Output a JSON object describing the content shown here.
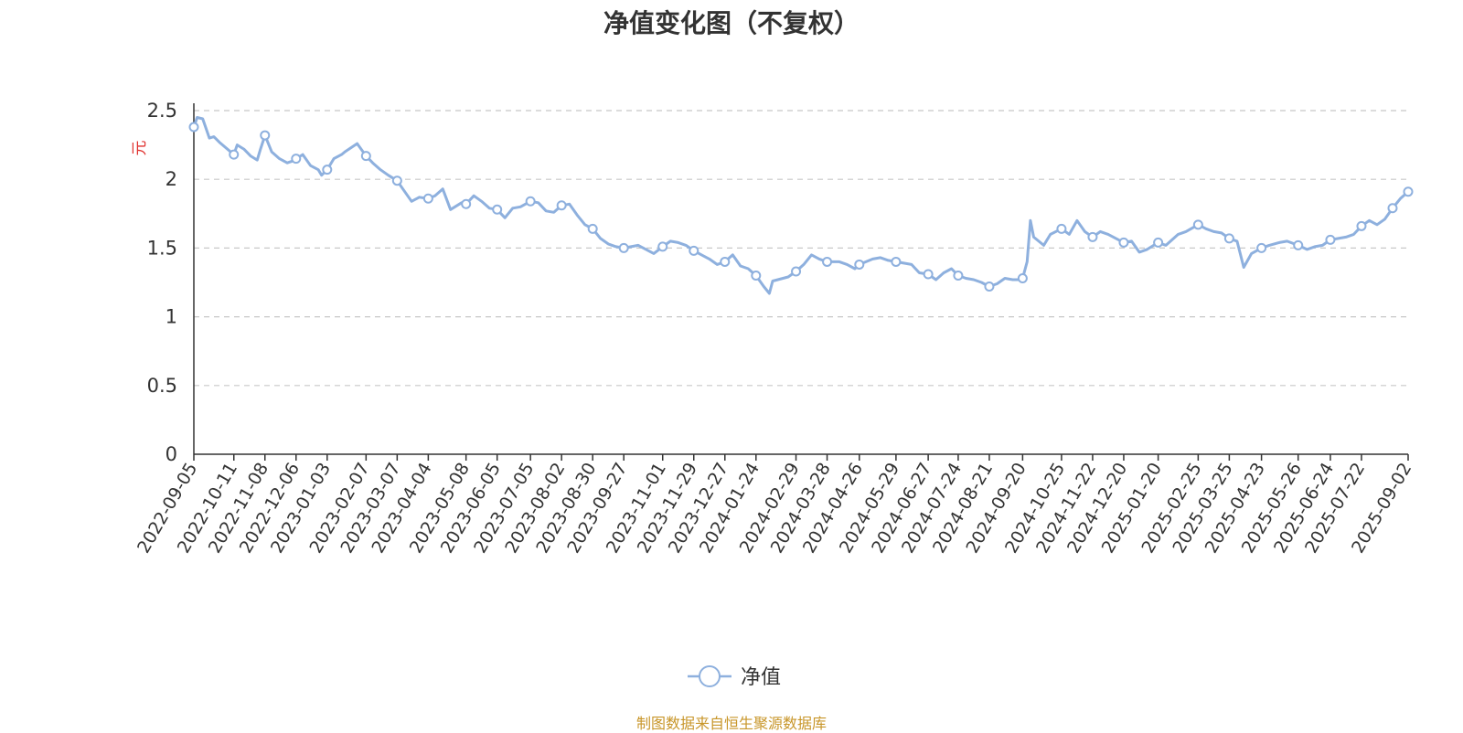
{
  "chart_data": {
    "type": "line",
    "title": "净值变化图（不复权）",
    "ylabel": "元",
    "ylim": [
      0,
      2.5
    ],
    "yticks": [
      0,
      0.5,
      1,
      1.5,
      2,
      2.5
    ],
    "grid": true,
    "legend_position": "bottom-center",
    "colors": {
      "line": "#8eb0de",
      "axis": "#333333",
      "ylabel": "#e0322f",
      "source": "#c8962a"
    },
    "x_labels": [
      "2022-09-05",
      "2022-10-11",
      "2022-11-08",
      "2022-12-06",
      "2023-01-03",
      "2023-02-07",
      "2023-03-07",
      "2023-04-04",
      "2023-05-08",
      "2023-06-05",
      "2023-07-05",
      "2023-08-02",
      "2023-08-30",
      "2023-09-27",
      "2023-11-01",
      "2023-11-29",
      "2023-12-27",
      "2024-01-24",
      "2024-02-29",
      "2024-03-28",
      "2024-04-26",
      "2024-05-29",
      "2024-06-27",
      "2024-07-24",
      "2024-08-21",
      "2024-09-20",
      "2024-10-25",
      "2024-11-22",
      "2024-12-20",
      "2025-01-20",
      "2025-02-25",
      "2025-03-25",
      "2025-04-23",
      "2025-05-26",
      "2025-06-24",
      "2025-07-22",
      "2025-09-02"
    ],
    "series": [
      {
        "name": "净值",
        "points": [
          [
            "2022-09-05",
            2.38
          ],
          [
            "2022-09-08",
            2.45
          ],
          [
            "2022-09-13",
            2.44
          ],
          [
            "2022-09-19",
            2.3
          ],
          [
            "2022-09-23",
            2.31
          ],
          [
            "2022-09-28",
            2.27
          ],
          [
            "2022-10-11",
            2.18
          ],
          [
            "2022-10-14",
            2.25
          ],
          [
            "2022-10-20",
            2.22
          ],
          [
            "2022-10-26",
            2.17
          ],
          [
            "2022-11-01",
            2.14
          ],
          [
            "2022-11-04",
            2.22
          ],
          [
            "2022-11-08",
            2.32
          ],
          [
            "2022-11-14",
            2.2
          ],
          [
            "2022-11-21",
            2.15
          ],
          [
            "2022-11-28",
            2.12
          ],
          [
            "2022-12-02",
            2.13
          ],
          [
            "2022-12-06",
            2.15
          ],
          [
            "2022-12-12",
            2.18
          ],
          [
            "2022-12-19",
            2.1
          ],
          [
            "2022-12-26",
            2.07
          ],
          [
            "2022-12-29",
            2.03
          ],
          [
            "2023-01-03",
            2.07
          ],
          [
            "2023-01-09",
            2.15
          ],
          [
            "2023-01-16",
            2.18
          ],
          [
            "2023-01-19",
            2.2
          ],
          [
            "2023-01-30",
            2.26
          ],
          [
            "2023-02-07",
            2.17
          ],
          [
            "2023-02-13",
            2.12
          ],
          [
            "2023-02-20",
            2.07
          ],
          [
            "2023-02-27",
            2.03
          ],
          [
            "2023-03-07",
            1.99
          ],
          [
            "2023-03-13",
            1.92
          ],
          [
            "2023-03-20",
            1.84
          ],
          [
            "2023-03-27",
            1.87
          ],
          [
            "2023-04-04",
            1.86
          ],
          [
            "2023-04-10",
            1.88
          ],
          [
            "2023-04-17",
            1.93
          ],
          [
            "2023-04-24",
            1.78
          ],
          [
            "2023-05-04",
            1.83
          ],
          [
            "2023-05-08",
            1.82
          ],
          [
            "2023-05-15",
            1.88
          ],
          [
            "2023-05-22",
            1.84
          ],
          [
            "2023-05-29",
            1.79
          ],
          [
            "2023-06-05",
            1.78
          ],
          [
            "2023-06-12",
            1.72
          ],
          [
            "2023-06-19",
            1.79
          ],
          [
            "2023-06-26",
            1.8
          ],
          [
            "2023-07-05",
            1.84
          ],
          [
            "2023-07-12",
            1.83
          ],
          [
            "2023-07-19",
            1.77
          ],
          [
            "2023-07-26",
            1.76
          ],
          [
            "2023-08-02",
            1.81
          ],
          [
            "2023-08-09",
            1.82
          ],
          [
            "2023-08-16",
            1.74
          ],
          [
            "2023-08-23",
            1.67
          ],
          [
            "2023-08-30",
            1.64
          ],
          [
            "2023-09-06",
            1.57
          ],
          [
            "2023-09-13",
            1.53
          ],
          [
            "2023-09-20",
            1.51
          ],
          [
            "2023-09-27",
            1.5
          ],
          [
            "2023-10-10",
            1.52
          ],
          [
            "2023-10-17",
            1.49
          ],
          [
            "2023-10-24",
            1.46
          ],
          [
            "2023-11-01",
            1.51
          ],
          [
            "2023-11-08",
            1.55
          ],
          [
            "2023-11-15",
            1.54
          ],
          [
            "2023-11-22",
            1.52
          ],
          [
            "2023-11-29",
            1.48
          ],
          [
            "2023-12-06",
            1.45
          ],
          [
            "2023-12-13",
            1.42
          ],
          [
            "2023-12-20",
            1.38
          ],
          [
            "2023-12-27",
            1.4
          ],
          [
            "2024-01-03",
            1.45
          ],
          [
            "2024-01-10",
            1.37
          ],
          [
            "2024-01-17",
            1.35
          ],
          [
            "2024-01-24",
            1.3
          ],
          [
            "2024-01-31",
            1.22
          ],
          [
            "2024-02-05",
            1.17
          ],
          [
            "2024-02-08",
            1.26
          ],
          [
            "2024-02-22",
            1.29
          ],
          [
            "2024-02-29",
            1.33
          ],
          [
            "2024-03-07",
            1.38
          ],
          [
            "2024-03-14",
            1.45
          ],
          [
            "2024-03-21",
            1.42
          ],
          [
            "2024-03-28",
            1.4
          ],
          [
            "2024-04-08",
            1.4
          ],
          [
            "2024-04-15",
            1.38
          ],
          [
            "2024-04-22",
            1.35
          ],
          [
            "2024-04-26",
            1.38
          ],
          [
            "2024-05-08",
            1.42
          ],
          [
            "2024-05-15",
            1.43
          ],
          [
            "2024-05-22",
            1.41
          ],
          [
            "2024-05-29",
            1.4
          ],
          [
            "2024-06-05",
            1.39
          ],
          [
            "2024-06-12",
            1.38
          ],
          [
            "2024-06-19",
            1.32
          ],
          [
            "2024-06-27",
            1.31
          ],
          [
            "2024-07-04",
            1.27
          ],
          [
            "2024-07-11",
            1.32
          ],
          [
            "2024-07-18",
            1.35
          ],
          [
            "2024-07-24",
            1.3
          ],
          [
            "2024-07-31",
            1.28
          ],
          [
            "2024-08-07",
            1.27
          ],
          [
            "2024-08-14",
            1.25
          ],
          [
            "2024-08-21",
            1.22
          ],
          [
            "2024-08-28",
            1.24
          ],
          [
            "2024-09-04",
            1.28
          ],
          [
            "2024-09-11",
            1.27
          ],
          [
            "2024-09-18",
            1.27
          ],
          [
            "2024-09-20",
            1.28
          ],
          [
            "2024-09-24",
            1.4
          ],
          [
            "2024-09-27",
            1.7
          ],
          [
            "2024-09-30",
            1.58
          ],
          [
            "2024-10-09",
            1.52
          ],
          [
            "2024-10-15",
            1.6
          ],
          [
            "2024-10-25",
            1.64
          ],
          [
            "2024-11-01",
            1.6
          ],
          [
            "2024-11-08",
            1.7
          ],
          [
            "2024-11-15",
            1.62
          ],
          [
            "2024-11-22",
            1.58
          ],
          [
            "2024-11-29",
            1.62
          ],
          [
            "2024-12-06",
            1.6
          ],
          [
            "2024-12-13",
            1.57
          ],
          [
            "2024-12-20",
            1.54
          ],
          [
            "2024-12-27",
            1.55
          ],
          [
            "2025-01-03",
            1.47
          ],
          [
            "2025-01-10",
            1.49
          ],
          [
            "2025-01-20",
            1.54
          ],
          [
            "2025-01-27",
            1.52
          ],
          [
            "2025-02-07",
            1.6
          ],
          [
            "2025-02-14",
            1.62
          ],
          [
            "2025-02-25",
            1.67
          ],
          [
            "2025-03-04",
            1.64
          ],
          [
            "2025-03-11",
            1.62
          ],
          [
            "2025-03-18",
            1.61
          ],
          [
            "2025-03-25",
            1.57
          ],
          [
            "2025-04-01",
            1.55
          ],
          [
            "2025-04-07",
            1.36
          ],
          [
            "2025-04-14",
            1.46
          ],
          [
            "2025-04-23",
            1.5
          ],
          [
            "2025-04-30",
            1.52
          ],
          [
            "2025-05-09",
            1.54
          ],
          [
            "2025-05-16",
            1.55
          ],
          [
            "2025-05-26",
            1.52
          ],
          [
            "2025-06-03",
            1.49
          ],
          [
            "2025-06-10",
            1.51
          ],
          [
            "2025-06-17",
            1.52
          ],
          [
            "2025-06-24",
            1.56
          ],
          [
            "2025-07-01",
            1.57
          ],
          [
            "2025-07-08",
            1.58
          ],
          [
            "2025-07-15",
            1.6
          ],
          [
            "2025-07-22",
            1.66
          ],
          [
            "2025-07-29",
            1.7
          ],
          [
            "2025-08-05",
            1.67
          ],
          [
            "2025-08-12",
            1.71
          ],
          [
            "2025-08-19",
            1.79
          ],
          [
            "2025-08-26",
            1.86
          ],
          [
            "2025-09-02",
            1.91
          ]
        ],
        "markers": [
          "2022-09-05",
          "2022-10-11",
          "2022-11-08",
          "2022-12-06",
          "2023-01-03",
          "2023-02-07",
          "2023-03-07",
          "2023-04-04",
          "2023-05-08",
          "2023-06-05",
          "2023-07-05",
          "2023-08-02",
          "2023-08-30",
          "2023-09-27",
          "2023-11-01",
          "2023-11-29",
          "2023-12-27",
          "2024-01-24",
          "2024-02-29",
          "2024-03-28",
          "2024-04-26",
          "2024-05-29",
          "2024-06-27",
          "2024-07-24",
          "2024-08-21",
          "2024-09-20",
          "2024-10-25",
          "2024-11-22",
          "2024-12-20",
          "2025-01-20",
          "2025-02-25",
          "2025-03-25",
          "2025-04-23",
          "2025-05-26",
          "2025-06-24",
          "2025-07-22",
          "2025-08-19",
          "2025-09-02"
        ]
      }
    ]
  },
  "source_note": "制图数据来自恒生聚源数据库"
}
